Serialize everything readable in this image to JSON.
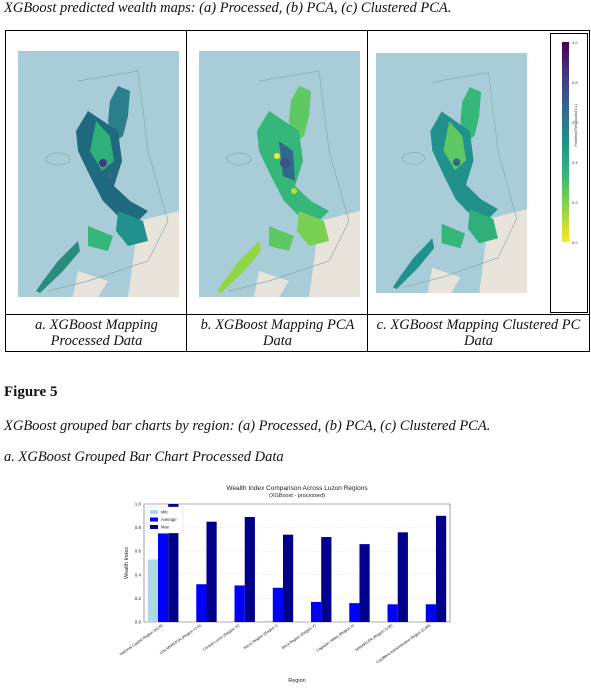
{
  "caption_top": "XGBoost predicted wealth maps: (a) Processed, (b) PCA, (c) Clustered PCA.",
  "maps": [
    {
      "caption": "a. XGBoost Mapping Processed Data"
    },
    {
      "caption": "b. XGBoost Mapping PCA Data"
    },
    {
      "caption": "c. XGBoost Mapping Clustered PC Data"
    }
  ],
  "colorbar": {
    "label": "Predicted RWI (Scaled 0-1)",
    "ticks": [
      "1.0",
      "0.8",
      "0.6",
      "0.4",
      "0.2",
      "0.0"
    ],
    "colors": [
      "#440154",
      "#443983",
      "#31688e",
      "#21918c",
      "#35b779",
      "#90d743",
      "#fde725"
    ]
  },
  "figure_label": "Figure 5",
  "figure_desc": "XGBoost grouped bar charts by region: (a) Processed, (b) PCA, (c) Clustered PCA.",
  "subcaption_a": "a. XGBoost Grouped Bar Chart Processed Data",
  "chart_data": {
    "type": "bar",
    "title": "Wealth Index Comparison Across Luzon Regions",
    "subtitle": "(XGBoost - processed)",
    "xlabel": "Region",
    "ylabel": "Wealth Index",
    "ylim": [
      0,
      1.0
    ],
    "yticks": [
      "0.0",
      "0.2",
      "0.4",
      "0.6",
      "0.8",
      "1.0"
    ],
    "grid": true,
    "legend_position": "top-left",
    "categories": [
      "National Capital Region (NCR)",
      "CALABARZON (Region IV-A)",
      "Central Luzon (Region III)",
      "Ilocos Region (Region I)",
      "Bicol Region (Region V)",
      "Cagayan Valley (Region II)",
      "MIMAROPA (Region IV-B)",
      "Cordillera Administrative Region (CAR)"
    ],
    "series": [
      {
        "name": "Min",
        "color": "#add8e6",
        "values": [
          0.53,
          0.0,
          0.0,
          0.01,
          0.0,
          0.0,
          0.0,
          0.0
        ]
      },
      {
        "name": "Average",
        "color": "#0000ff",
        "values": [
          0.75,
          0.32,
          0.31,
          0.29,
          0.17,
          0.16,
          0.15,
          0.15
        ]
      },
      {
        "name": "Max",
        "color": "#00008b",
        "values": [
          1.0,
          0.85,
          0.89,
          0.74,
          0.72,
          0.66,
          0.76,
          0.9
        ]
      }
    ]
  }
}
